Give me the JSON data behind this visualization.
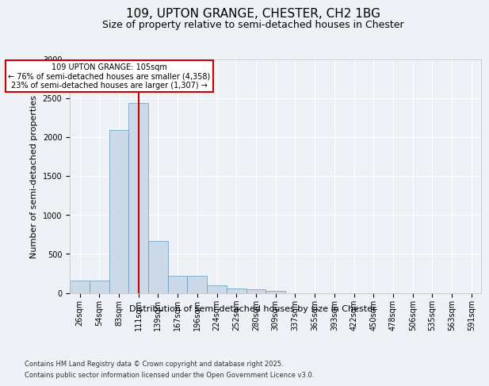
{
  "title1": "109, UPTON GRANGE, CHESTER, CH2 1BG",
  "title2": "Size of property relative to semi-detached houses in Chester",
  "xlabel": "Distribution of semi-detached houses by size in Chester",
  "ylabel": "Number of semi-detached properties",
  "categories": [
    "26sqm",
    "54sqm",
    "83sqm",
    "111sqm",
    "139sqm",
    "167sqm",
    "196sqm",
    "224sqm",
    "252sqm",
    "280sqm",
    "309sqm",
    "337sqm",
    "365sqm",
    "393sqm",
    "422sqm",
    "450sqm",
    "478sqm",
    "506sqm",
    "535sqm",
    "563sqm",
    "591sqm"
  ],
  "values": [
    155,
    155,
    2090,
    2440,
    665,
    220,
    215,
    100,
    57,
    50,
    27,
    0,
    0,
    0,
    0,
    0,
    0,
    0,
    0,
    0,
    0
  ],
  "bar_color": "#ccd9e8",
  "bar_edge_color": "#6699bb",
  "vline_color": "#cc0000",
  "annotation_title": "109 UPTON GRANGE: 105sqm",
  "annotation_line1": "← 76% of semi-detached houses are smaller (4,358)",
  "annotation_line2": "23% of semi-detached houses are larger (1,307) →",
  "annotation_box_color": "#ffffff",
  "annotation_box_edge": "#cc0000",
  "footer1": "Contains HM Land Registry data © Crown copyright and database right 2025.",
  "footer2": "Contains public sector information licensed under the Open Government Licence v3.0.",
  "ylim": [
    0,
    3000
  ],
  "bg_color": "#eef2f7",
  "plot_bg_color": "#eef2f7",
  "grid_color": "#ffffff",
  "title1_fontsize": 11,
  "title2_fontsize": 9,
  "ylabel_fontsize": 8,
  "xlabel_fontsize": 8,
  "tick_fontsize": 7,
  "footer_fontsize": 6
}
